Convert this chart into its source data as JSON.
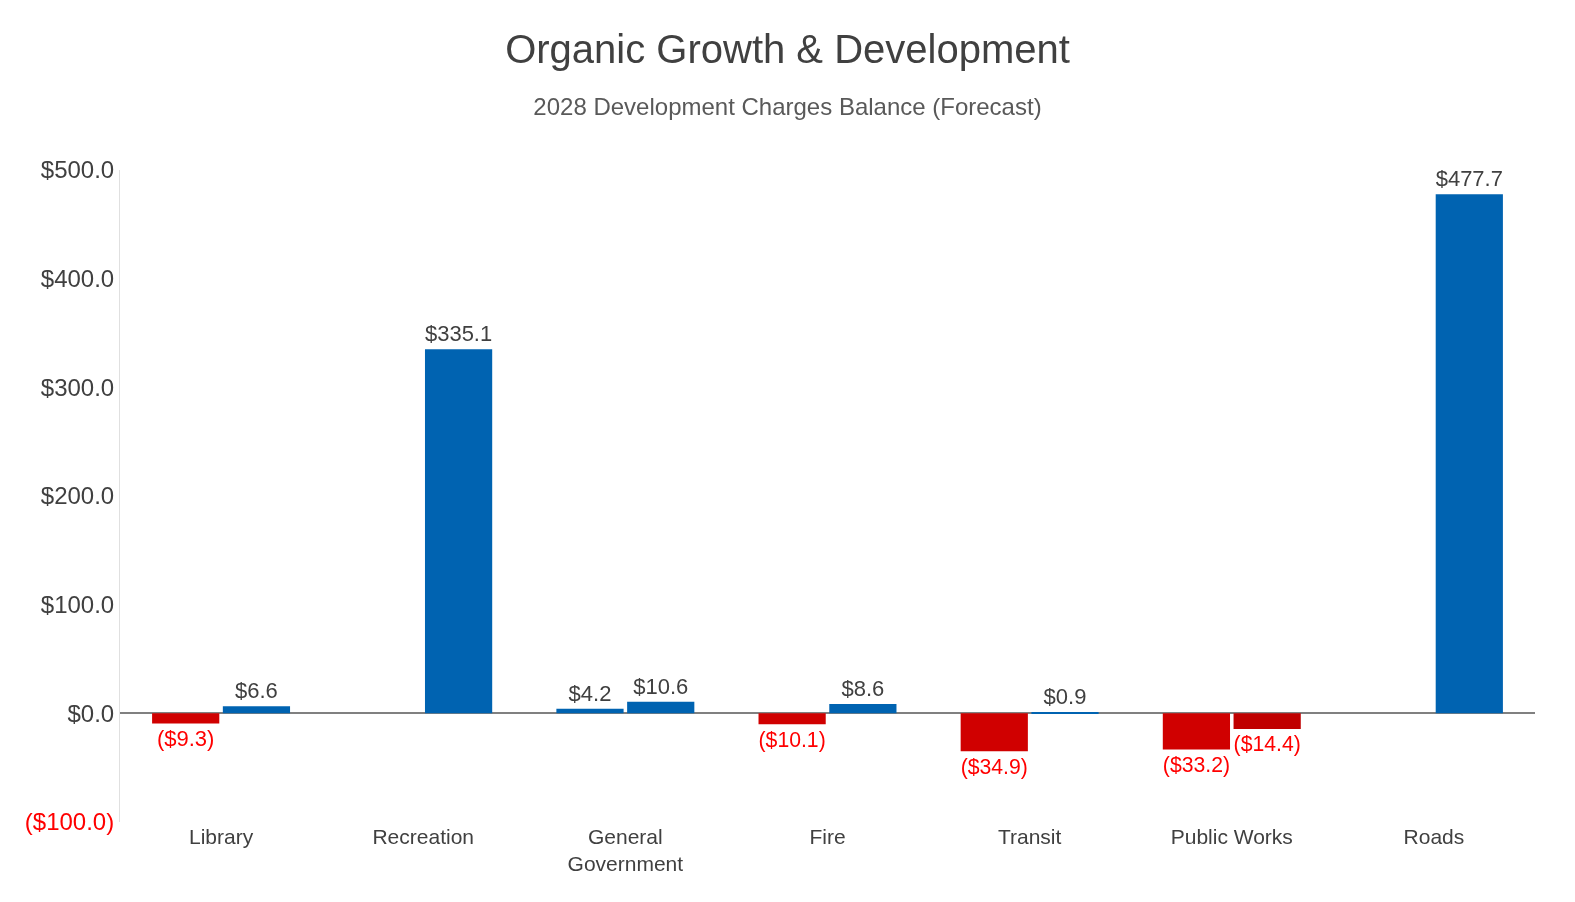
{
  "chart_data": {
    "type": "bar",
    "title": "Organic Growth & Development",
    "subtitle": "2028 Development Charges Balance (Forecast)",
    "categories": [
      "Library",
      "Recreation",
      "General Government",
      "Fire",
      "Transit",
      "Public Works",
      "Roads"
    ],
    "series": [
      {
        "colors": [
          "#d00000",
          null,
          "#0063b1",
          "#d00000",
          "#d00000",
          "#d00000",
          null
        ],
        "values": [
          -9.3,
          null,
          4.2,
          -10.1,
          -34.9,
          -33.2,
          null
        ],
        "value_labels": [
          "($9.3)",
          null,
          "$4.2",
          "($10.1)",
          "($34.9)",
          "($33.2)",
          null
        ]
      },
      {
        "colors": [
          "#0063b1",
          "#0063b1",
          "#0063b1",
          "#0063b1",
          "#0063b1",
          "#c00000",
          "#0063b1"
        ],
        "values": [
          6.6,
          335.1,
          10.6,
          8.6,
          0.9,
          -14.4,
          477.7
        ],
        "value_labels": [
          "$6.6",
          "$335.1",
          "$10.6",
          "$8.6",
          "$0.9",
          "($14.4)",
          "$477.7"
        ]
      }
    ],
    "ylim": [
      -100,
      500
    ],
    "yticks": [
      {
        "value": -100,
        "label": "($100.0)"
      },
      {
        "value": 0,
        "label": "$0.0"
      },
      {
        "value": 100,
        "label": "$100.0"
      },
      {
        "value": 200,
        "label": "$200.0"
      },
      {
        "value": 300,
        "label": "$300.0"
      },
      {
        "value": 400,
        "label": "$400.0"
      },
      {
        "value": 500,
        "label": "$500.0"
      }
    ]
  }
}
